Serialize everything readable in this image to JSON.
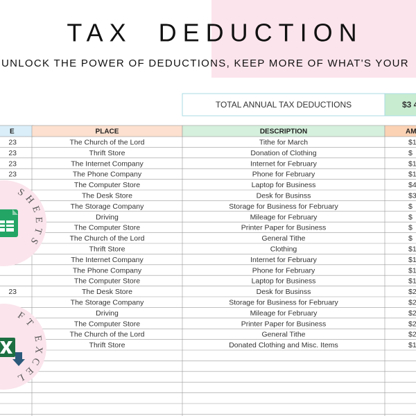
{
  "header": {
    "title": "TAX  DEDUCTION",
    "subtitle": "UNLOCK THE POWER OF DEDUCTIONS, KEEP MORE OF WHAT'S YOUR"
  },
  "total": {
    "label": "TOTAL ANNUAL TAX DEDUCTIONS",
    "value": "$3 4"
  },
  "table": {
    "columns": [
      "E",
      "PLACE",
      "DESCRIPTION",
      "AM"
    ],
    "rows": [
      [
        "23",
        "The Church of the Lord",
        "Tithe for March",
        "$1"
      ],
      [
        "23",
        "Thrift Store",
        "Donation of Clothing",
        "$"
      ],
      [
        "23",
        "The Internet Company",
        "Internet for February",
        "$1"
      ],
      [
        "23",
        "The Phone Company",
        "Phone for February",
        "$1"
      ],
      [
        null,
        "The Computer Store",
        "Laptop for Business",
        "$4"
      ],
      [
        null,
        "The Desk Store",
        "Desk for Businss",
        "$3"
      ],
      [
        null,
        "The Storage Company",
        "Storage for Business for February",
        "$"
      ],
      [
        null,
        "Driving",
        "Mileage for February",
        "$"
      ],
      [
        null,
        "The Computer Store",
        "Printer Paper for Business",
        "$"
      ],
      [
        null,
        "The Church of the Lord",
        "General Tithe",
        "$"
      ],
      [
        null,
        "Thrift Store",
        "Clothing",
        "$1"
      ],
      [
        null,
        "The Internet Company",
        "Internet for February",
        "$1"
      ],
      [
        null,
        "The Phone Company",
        "Phone for February",
        "$1"
      ],
      [
        null,
        "The Computer Store",
        "Laptop for Business",
        "$1"
      ],
      [
        "23",
        "The Desk Store",
        "Desk for Businss",
        "$2"
      ],
      [
        null,
        "The Storage Company",
        "Storage for Business for February",
        "$2"
      ],
      [
        null,
        "Driving",
        "Mileage for February",
        "$2"
      ],
      [
        null,
        "The Computer Store",
        "Printer Paper for Business",
        "$2"
      ],
      [
        null,
        "The Church of the Lord",
        "General Tithe",
        "$2"
      ],
      [
        null,
        "Thrift Store",
        "Donated Clothing and Misc. Items",
        "$1"
      ]
    ]
  },
  "badges": {
    "sheets": "SHEETS",
    "excel": "FT EXCEL"
  }
}
